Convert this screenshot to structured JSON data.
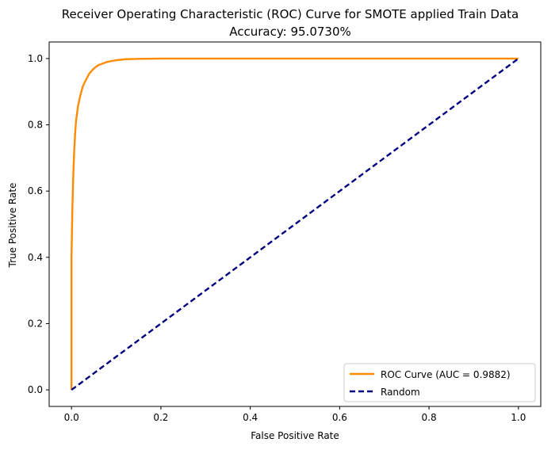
{
  "title_line1": "Receiver Operating Characteristic (ROC) Curve for SMOTE applied Train Data",
  "title_line2": "Accuracy: 95.0730%",
  "colors": {
    "roc": "#ff8c00",
    "random": "#000080",
    "axes": "#000000",
    "legend_border": "#cccccc"
  },
  "chart_data": {
    "type": "line",
    "title": "Receiver Operating Characteristic (ROC) Curve for SMOTE applied Train Data\nAccuracy: 95.0730%",
    "xlabel": "False Positive Rate",
    "ylabel": "True Positive Rate",
    "xlim": [
      -0.05,
      1.05
    ],
    "ylim": [
      -0.05,
      1.05
    ],
    "xticks": [
      "0.0",
      "0.2",
      "0.4",
      "0.6",
      "0.8",
      "1.0"
    ],
    "yticks": [
      "0.0",
      "0.2",
      "0.4",
      "0.6",
      "0.8",
      "1.0"
    ],
    "grid": false,
    "legend_position": "lower right",
    "series": [
      {
        "name": "ROC Curve (AUC = 0.9882)",
        "color": "#ff8c00",
        "style": "solid",
        "x": [
          0.0,
          0.0,
          0.002,
          0.004,
          0.006,
          0.008,
          0.01,
          0.015,
          0.02,
          0.025,
          0.03,
          0.04,
          0.05,
          0.06,
          0.07,
          0.08,
          0.1,
          0.12,
          0.15,
          0.2,
          0.3,
          0.5,
          0.75,
          1.0
        ],
        "y": [
          0.0,
          0.4,
          0.55,
          0.65,
          0.72,
          0.77,
          0.81,
          0.86,
          0.89,
          0.915,
          0.93,
          0.955,
          0.97,
          0.98,
          0.985,
          0.99,
          0.995,
          0.998,
          0.999,
          1.0,
          1.0,
          1.0,
          1.0,
          1.0
        ]
      },
      {
        "name": "Random",
        "color": "#000080",
        "style": "dashed",
        "x": [
          0.0,
          1.0
        ],
        "y": [
          0.0,
          1.0
        ]
      }
    ]
  }
}
